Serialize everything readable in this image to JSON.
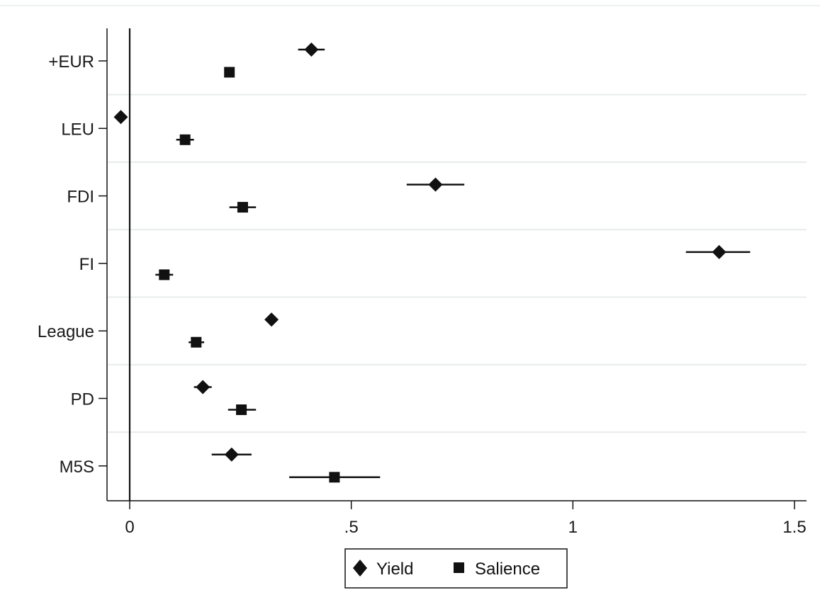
{
  "chart_data": {
    "type": "scatter",
    "subtype": "coefficient-plot",
    "title": "",
    "xlabel": "",
    "ylabel": "",
    "xlim": [
      -0.05,
      1.52
    ],
    "grid": "horizontal",
    "reference_line_x": 0,
    "legend_position": "bottom",
    "categories": [
      "+EUR",
      "LEU",
      "FDI",
      "FI",
      "League",
      "PD",
      "M5S"
    ],
    "x_ticks": [
      {
        "value": 0,
        "label": "0"
      },
      {
        "value": 0.5,
        "label": ".5"
      },
      {
        "value": 1,
        "label": "1"
      },
      {
        "value": 1.5,
        "label": "1.5"
      }
    ],
    "series": [
      {
        "name": "Yield",
        "marker": "diamond",
        "points": [
          {
            "category": "+EUR",
            "estimate": 0.41,
            "ci_low": 0.38,
            "ci_high": 0.44
          },
          {
            "category": "LEU",
            "estimate": -0.02,
            "ci_low": -0.02,
            "ci_high": -0.02
          },
          {
            "category": "FDI",
            "estimate": 0.69,
            "ci_low": 0.625,
            "ci_high": 0.755
          },
          {
            "category": "FI",
            "estimate": 1.33,
            "ci_low": 1.255,
            "ci_high": 1.4
          },
          {
            "category": "League",
            "estimate": 0.32,
            "ci_low": 0.32,
            "ci_high": 0.32
          },
          {
            "category": "PD",
            "estimate": 0.165,
            "ci_low": 0.145,
            "ci_high": 0.185
          },
          {
            "category": "M5S",
            "estimate": 0.23,
            "ci_low": 0.185,
            "ci_high": 0.275
          }
        ]
      },
      {
        "name": "Salience",
        "marker": "square",
        "points": [
          {
            "category": "+EUR",
            "estimate": 0.225,
            "ci_low": 0.225,
            "ci_high": 0.225
          },
          {
            "category": "LEU",
            "estimate": 0.125,
            "ci_low": 0.105,
            "ci_high": 0.145
          },
          {
            "category": "FDI",
            "estimate": 0.255,
            "ci_low": 0.225,
            "ci_high": 0.285
          },
          {
            "category": "FI",
            "estimate": 0.078,
            "ci_low": 0.058,
            "ci_high": 0.098
          },
          {
            "category": "League",
            "estimate": 0.15,
            "ci_low": 0.133,
            "ci_high": 0.168
          },
          {
            "category": "PD",
            "estimate": 0.252,
            "ci_low": 0.222,
            "ci_high": 0.285
          },
          {
            "category": "M5S",
            "estimate": 0.462,
            "ci_low": 0.36,
            "ci_high": 0.565
          }
        ]
      }
    ],
    "colors": {
      "marker": "#111111",
      "grid": "#e7ecec",
      "axis": "#111111",
      "background": "#ffffff"
    }
  }
}
